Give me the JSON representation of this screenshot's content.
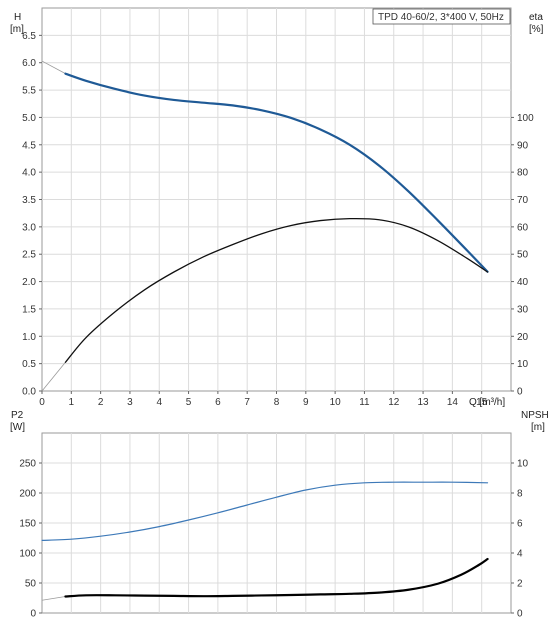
{
  "pump_label": "TPD 40-60/2, 3*400 V, 50Hz",
  "colors": {
    "head": "#1f5a96",
    "efficiency": "#111111",
    "power": "#3d79b8",
    "npsh": "#000000",
    "grid": "#dcdcdc",
    "extension": "#9a9a9a"
  },
  "chart_data": [
    {
      "type": "line",
      "xlabel": "Q [m³/h]",
      "ylabel": "H\n[m]",
      "y2label": "eta\n[%]",
      "xlim": [
        0,
        16
      ],
      "ylim": [
        0,
        7
      ],
      "y2lim": [
        0,
        140
      ],
      "xticks": [
        "0",
        "1",
        "2",
        "3",
        "4",
        "5",
        "6",
        "7",
        "8",
        "9",
        "10",
        "11",
        "12",
        "13",
        "14",
        "15"
      ],
      "yticks": [
        "0.0",
        "0.5",
        "1.0",
        "1.5",
        "2.0",
        "2.5",
        "3.0",
        "3.5",
        "4.0",
        "4.5",
        "5.0",
        "5.5",
        "6.0",
        "6.5"
      ],
      "y2ticks": [
        "0",
        "10",
        "20",
        "30",
        "40",
        "50",
        "60",
        "70",
        "80",
        "90",
        "100"
      ],
      "grid": true,
      "series": [
        {
          "axis": "left",
          "color": "#1f5a96",
          "width": 2.2,
          "x": [
            0.8,
            1.5,
            2.5,
            3.5,
            4.5,
            5.5,
            6.5,
            7.5,
            8.5,
            9.5,
            10.5,
            11.5,
            12.5,
            13.5,
            14.5,
            15.2
          ],
          "y": [
            5.8,
            5.67,
            5.52,
            5.4,
            5.32,
            5.27,
            5.22,
            5.13,
            4.99,
            4.78,
            4.5,
            4.12,
            3.65,
            3.12,
            2.57,
            2.18
          ],
          "ext_x": [
            0,
            0.8
          ],
          "ext_y": [
            6.03,
            5.8
          ]
        },
        {
          "axis": "right",
          "color": "#111111",
          "width": 1.3,
          "x": [
            0.8,
            1.5,
            2.5,
            3.5,
            4.5,
            5.5,
            6.5,
            7.5,
            8.5,
            9.5,
            10.5,
            11.5,
            12.5,
            13.5,
            14.5,
            15.2
          ],
          "y": [
            10.5,
            19.5,
            29,
            37,
            43.5,
            49,
            53.5,
            57.5,
            60.5,
            62.3,
            63,
            62.6,
            60,
            55,
            48.5,
            43.5
          ],
          "ext_x": [
            0,
            0.8
          ],
          "ext_y": [
            0,
            10.5
          ]
        }
      ]
    },
    {
      "type": "line",
      "xlabel": "",
      "ylabel": "P2\n[W]",
      "y2label": "NPSH\n[m]",
      "xlim": [
        0,
        16
      ],
      "ylim": [
        0,
        300
      ],
      "y2lim": [
        0,
        12
      ],
      "yticks": [
        "0",
        "50",
        "100",
        "150",
        "200",
        "250"
      ],
      "y2ticks": [
        "0",
        "2",
        "4",
        "6",
        "8",
        "10"
      ],
      "grid": true,
      "series": [
        {
          "axis": "left",
          "color": "#3d79b8",
          "width": 1.2,
          "x": [
            0,
            1,
            2,
            3,
            4,
            5,
            6,
            7,
            8,
            9,
            10,
            11,
            12,
            13,
            14,
            15.2
          ],
          "y": [
            121,
            123,
            128,
            135,
            144,
            155,
            167,
            180,
            193,
            205,
            213,
            217,
            218,
            218,
            218,
            217
          ]
        },
        {
          "axis": "right",
          "color": "#000000",
          "width": 2.2,
          "x": [
            0.8,
            1.5,
            2.5,
            3.5,
            4.5,
            5.5,
            6.5,
            7.5,
            8.5,
            9.5,
            10.5,
            11.5,
            12.5,
            13.5,
            14.3,
            14.9,
            15.2
          ],
          "y": [
            1.1,
            1.18,
            1.18,
            1.16,
            1.14,
            1.12,
            1.14,
            1.17,
            1.2,
            1.24,
            1.28,
            1.36,
            1.55,
            1.95,
            2.55,
            3.2,
            3.6
          ],
          "ext_x": [
            0,
            0.8
          ],
          "ext_y": [
            0.85,
            1.1
          ]
        }
      ]
    }
  ]
}
